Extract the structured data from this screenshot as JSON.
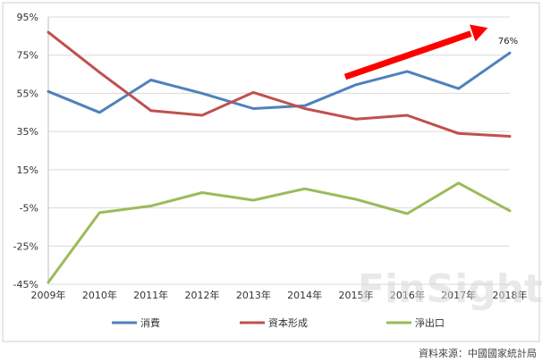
{
  "chart_data": {
    "type": "line",
    "categories": [
      "2009年",
      "2010年",
      "2011年",
      "2012年",
      "2013年",
      "2014年",
      "2015年",
      "2016年",
      "2017年",
      "2018年"
    ],
    "series": [
      {
        "name": "消費",
        "values": [
          56,
          45,
          62,
          55,
          47,
          48.5,
          59.5,
          66.5,
          57.5,
          76.2
        ],
        "color": "#4f81bd"
      },
      {
        "name": "資本形成",
        "values": [
          87,
          66,
          46,
          43.5,
          55.5,
          47,
          41.5,
          43.5,
          34,
          32.5
        ],
        "color": "#c0504d"
      },
      {
        "name": "淨出口",
        "values": [
          -44,
          -7.5,
          -4,
          3,
          -1,
          5,
          -0.5,
          -8,
          8,
          -6.5
        ],
        "color": "#9bbb59"
      }
    ],
    "y_ticks": [
      "95%",
      "75%",
      "55%",
      "35%",
      "15%",
      "-5%",
      "-25%",
      "-45%"
    ],
    "ylim": [
      -45,
      95
    ],
    "annotations": [
      {
        "text": "76%",
        "series": "消費",
        "category": "2018年"
      }
    ],
    "arrow_color": "#ff0000",
    "legend_position": "bottom",
    "grid": true,
    "watermark": "FinSight",
    "source": "資料來源：中國國家統計局"
  }
}
